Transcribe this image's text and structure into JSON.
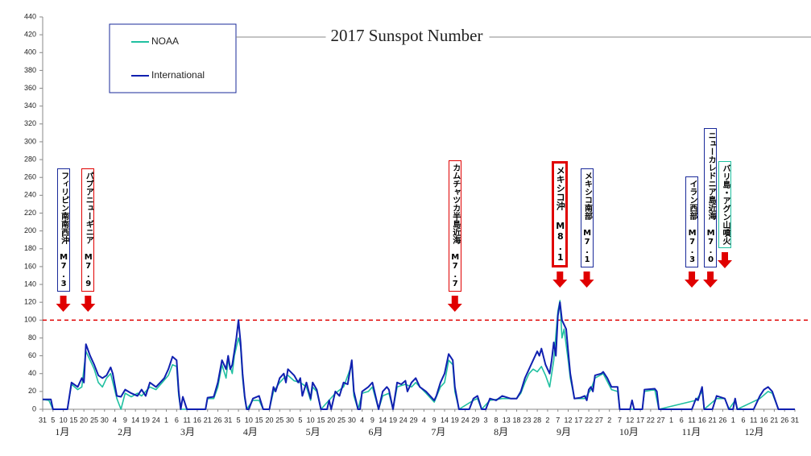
{
  "chart_data": {
    "type": "line",
    "title": "2017 Sunspot Number",
    "xlim": [
      0,
      365
    ],
    "ylim": [
      0,
      440
    ],
    "yticks": [
      0,
      20,
      40,
      60,
      80,
      100,
      120,
      140,
      160,
      180,
      200,
      220,
      240,
      260,
      280,
      300,
      320,
      340,
      360,
      380,
      400,
      420,
      440
    ],
    "xticks": [
      {
        "value": 0,
        "label": "31"
      },
      {
        "value": 5,
        "label": "5"
      },
      {
        "value": 10,
        "label": "10"
      },
      {
        "value": 15,
        "label": "15"
      },
      {
        "value": 20,
        "label": "20"
      },
      {
        "value": 25,
        "label": "25"
      },
      {
        "value": 30,
        "label": "30"
      },
      {
        "value": 35,
        "label": "4"
      },
      {
        "value": 40,
        "label": "9"
      },
      {
        "value": 45,
        "label": "14"
      },
      {
        "value": 50,
        "label": "19"
      },
      {
        "value": 55,
        "label": "24"
      },
      {
        "value": 60,
        "label": "1"
      },
      {
        "value": 65,
        "label": "6"
      },
      {
        "value": 70,
        "label": "11"
      },
      {
        "value": 75,
        "label": "16"
      },
      {
        "value": 80,
        "label": "21"
      },
      {
        "value": 85,
        "label": "26"
      },
      {
        "value": 90,
        "label": "31"
      },
      {
        "value": 95,
        "label": "5"
      },
      {
        "value": 100,
        "label": "10"
      },
      {
        "value": 105,
        "label": "15"
      },
      {
        "value": 110,
        "label": "20"
      },
      {
        "value": 115,
        "label": "25"
      },
      {
        "value": 120,
        "label": "30"
      },
      {
        "value": 125,
        "label": "5"
      },
      {
        "value": 130,
        "label": "10"
      },
      {
        "value": 135,
        "label": "15"
      },
      {
        "value": 140,
        "label": "20"
      },
      {
        "value": 145,
        "label": "25"
      },
      {
        "value": 150,
        "label": "30"
      },
      {
        "value": 155,
        "label": "4"
      },
      {
        "value": 160,
        "label": "9"
      },
      {
        "value": 165,
        "label": "14"
      },
      {
        "value": 170,
        "label": "19"
      },
      {
        "value": 175,
        "label": "24"
      },
      {
        "value": 180,
        "label": "29"
      },
      {
        "value": 185,
        "label": "4"
      },
      {
        "value": 190,
        "label": "9"
      },
      {
        "value": 195,
        "label": "14"
      },
      {
        "value": 200,
        "label": "19"
      },
      {
        "value": 205,
        "label": "24"
      },
      {
        "value": 210,
        "label": "29"
      },
      {
        "value": 215,
        "label": "3"
      },
      {
        "value": 220,
        "label": "8"
      },
      {
        "value": 225,
        "label": "13"
      },
      {
        "value": 230,
        "label": "18"
      },
      {
        "value": 235,
        "label": "23"
      },
      {
        "value": 240,
        "label": "28"
      },
      {
        "value": 245,
        "label": "2"
      },
      {
        "value": 250,
        "label": "7"
      },
      {
        "value": 255,
        "label": "12"
      },
      {
        "value": 260,
        "label": "17"
      },
      {
        "value": 265,
        "label": "22"
      },
      {
        "value": 270,
        "label": "27"
      },
      {
        "value": 275,
        "label": "2"
      },
      {
        "value": 280,
        "label": "7"
      },
      {
        "value": 285,
        "label": "12"
      },
      {
        "value": 290,
        "label": "17"
      },
      {
        "value": 295,
        "label": "22"
      },
      {
        "value": 300,
        "label": "27"
      },
      {
        "value": 305,
        "label": "1"
      },
      {
        "value": 310,
        "label": "6"
      },
      {
        "value": 315,
        "label": "11"
      },
      {
        "value": 320,
        "label": "16"
      },
      {
        "value": 325,
        "label": "21"
      },
      {
        "value": 330,
        "label": "26"
      },
      {
        "value": 335,
        "label": "1"
      },
      {
        "value": 340,
        "label": "6"
      },
      {
        "value": 345,
        "label": "11"
      },
      {
        "value": 350,
        "label": "16"
      },
      {
        "value": 355,
        "label": "21"
      },
      {
        "value": 360,
        "label": "26"
      },
      {
        "value": 365,
        "label": "31"
      }
    ],
    "month_labels": [
      "1月",
      "2月",
      "3月",
      "4月",
      "5月",
      "6月",
      "7月",
      "8月",
      "9月",
      "10月",
      "11月",
      "12月"
    ],
    "threshold": 100,
    "threshold_color": "#e00000",
    "series": [
      {
        "name": "NOAA",
        "color": "#20c0a0",
        "x": [
          0,
          3,
          5,
          12,
          14,
          17,
          19,
          21,
          23,
          25,
          27,
          29,
          31,
          33,
          36,
          38,
          40,
          43,
          46,
          48,
          52,
          55,
          58,
          61,
          63,
          65,
          66,
          67,
          79,
          80,
          83,
          85,
          87,
          89,
          90,
          92,
          93,
          95,
          96,
          97,
          98,
          99,
          102,
          105,
          107,
          110,
          112,
          115,
          117,
          119,
          122,
          125,
          128,
          130,
          131,
          133,
          135,
          142,
          146,
          150,
          151,
          153,
          155,
          158,
          160,
          163,
          165,
          168,
          170,
          172,
          176,
          179,
          181,
          186,
          190,
          193,
          195,
          197,
          199,
          200,
          202,
          209,
          211,
          213,
          217,
          223,
          230,
          232,
          234,
          236,
          238,
          240,
          242,
          244,
          246,
          248,
          250,
          251,
          252,
          253,
          255,
          256,
          258,
          263,
          266,
          268,
          272,
          276,
          279,
          280,
          291,
          292,
          297,
          299,
          317,
          320,
          321,
          327,
          331,
          333,
          336,
          337,
          348,
          352,
          354,
          357,
          365
        ],
        "values": [
          11,
          10,
          0,
          0,
          28,
          22,
          25,
          65,
          55,
          45,
          30,
          25,
          35,
          40,
          12,
          0,
          18,
          14,
          18,
          15,
          25,
          22,
          30,
          38,
          50,
          48,
          15,
          0,
          0,
          12,
          12,
          25,
          50,
          35,
          55,
          40,
          60,
          80,
          70,
          35,
          12,
          0,
          10,
          10,
          0,
          0,
          20,
          30,
          35,
          38,
          32,
          30,
          25,
          10,
          25,
          20,
          0,
          18,
          25,
          50,
          15,
          0,
          18,
          20,
          25,
          0,
          15,
          18,
          0,
          25,
          28,
          25,
          30,
          18,
          8,
          25,
          30,
          55,
          50,
          20,
          0,
          10,
          12,
          0,
          10,
          12,
          12,
          18,
          30,
          40,
          45,
          42,
          48,
          38,
          25,
          55,
          110,
          122,
          80,
          90,
          55,
          35,
          12,
          12,
          22,
          35,
          40,
          22,
          20,
          0,
          0,
          20,
          22,
          0,
          10,
          20,
          0,
          12,
          12,
          0,
          10,
          0,
          12,
          20,
          18,
          0,
          0
        ]
      },
      {
        "name": "International",
        "color": "#1020b0",
        "x": [
          0,
          4,
          5,
          12,
          14,
          17,
          19,
          20,
          21,
          23,
          25,
          27,
          29,
          31,
          33,
          34,
          36,
          38,
          40,
          43,
          46,
          48,
          50,
          52,
          55,
          57,
          59,
          61,
          63,
          65,
          66,
          67,
          68,
          70,
          79,
          80,
          83,
          85,
          87,
          89,
          90,
          91,
          92,
          93,
          94,
          95,
          96,
          97,
          98,
          99,
          100,
          102,
          105,
          107,
          110,
          112,
          113,
          115,
          117,
          118,
          119,
          122,
          124,
          125,
          126,
          128,
          130,
          131,
          133,
          135,
          138,
          139,
          140,
          142,
          144,
          146,
          148,
          150,
          151,
          153,
          154,
          155,
          158,
          160,
          161,
          163,
          165,
          167,
          168,
          170,
          172,
          174,
          176,
          177,
          179,
          181,
          183,
          186,
          188,
          190,
          191,
          193,
          195,
          197,
          199,
          200,
          202,
          207,
          209,
          211,
          213,
          215,
          217,
          220,
          223,
          227,
          230,
          232,
          234,
          236,
          238,
          240,
          241,
          242,
          244,
          245,
          246,
          247,
          248,
          249,
          250,
          251,
          252,
          253,
          254,
          255,
          256,
          258,
          261,
          263,
          264,
          265,
          266,
          267,
          268,
          271,
          272,
          274,
          276,
          279,
          280,
          285,
          286,
          287,
          291,
          292,
          297,
          298,
          299,
          315,
          317,
          318,
          320,
          321,
          325,
          327,
          331,
          333,
          335,
          336,
          337,
          345,
          348,
          350,
          352,
          354,
          357,
          365
        ],
        "values": [
          11,
          11,
          0,
          0,
          30,
          25,
          35,
          30,
          73,
          60,
          50,
          38,
          35,
          38,
          47,
          40,
          15,
          14,
          22,
          18,
          15,
          22,
          15,
          30,
          25,
          30,
          35,
          45,
          59,
          55,
          20,
          0,
          14,
          0,
          0,
          13,
          14,
          30,
          55,
          45,
          60,
          45,
          50,
          65,
          80,
          100,
          75,
          40,
          15,
          0,
          0,
          12,
          15,
          0,
          0,
          25,
          20,
          35,
          40,
          30,
          45,
          38,
          30,
          35,
          15,
          30,
          12,
          30,
          22,
          0,
          0,
          10,
          0,
          20,
          15,
          30,
          28,
          55,
          20,
          0,
          0,
          20,
          25,
          30,
          20,
          0,
          20,
          25,
          22,
          0,
          30,
          28,
          32,
          20,
          30,
          35,
          25,
          20,
          15,
          10,
          15,
          30,
          40,
          62,
          55,
          25,
          0,
          0,
          12,
          15,
          0,
          0,
          12,
          10,
          15,
          12,
          12,
          20,
          35,
          45,
          55,
          65,
          60,
          68,
          50,
          45,
          40,
          55,
          75,
          60,
          105,
          120,
          100,
          95,
          90,
          65,
          40,
          12,
          13,
          15,
          10,
          22,
          25,
          20,
          38,
          40,
          42,
          35,
          25,
          25,
          0,
          0,
          10,
          0,
          0,
          22,
          23,
          20,
          0,
          0,
          12,
          10,
          25,
          0,
          0,
          15,
          12,
          0,
          0,
          12,
          0,
          0,
          15,
          22,
          25,
          20,
          0,
          0
        ]
      }
    ],
    "annotations": [
      {
        "text": "フィリピン南南西沖 M7.3",
        "x": 10,
        "color": "#1a2a9a"
      },
      {
        "text": "パプアニューギニア M7.9",
        "x": 22,
        "color": "#e00000"
      },
      {
        "text": "カムチャツカ半島近海 M7.7",
        "x": 200,
        "color": "#e00000"
      },
      {
        "text": "メキシコ沖 M8.1",
        "x": 251,
        "color": "#e00000"
      },
      {
        "text": "メキシコ南部 M7.1",
        "x": 264,
        "color": "#1a2a9a"
      },
      {
        "text": "イラン西部 M7.3",
        "x": 315,
        "color": "#1a2a9a"
      },
      {
        "text": "ニューカレドニア島近海 M7.0",
        "x": 324,
        "color": "#1a2a9a"
      },
      {
        "text": "バリ島・アグン山噴火",
        "x": 331,
        "color": "#20c0a0"
      }
    ]
  }
}
